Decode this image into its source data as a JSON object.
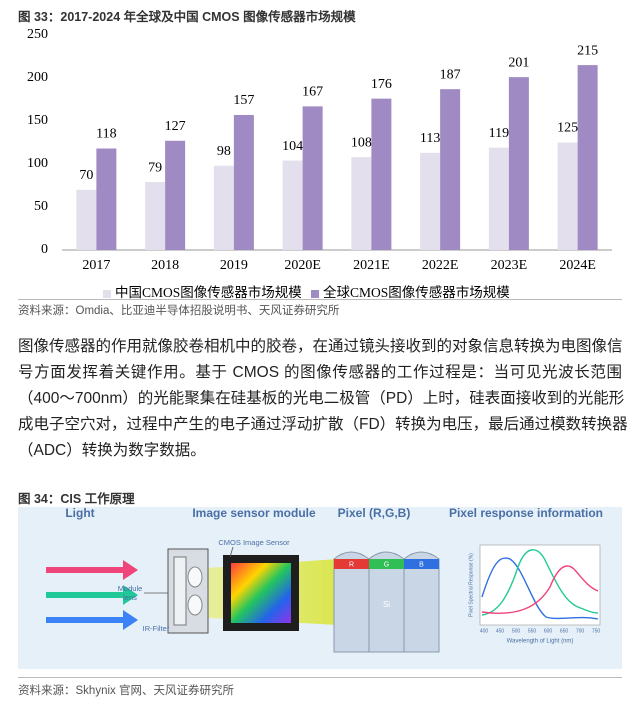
{
  "chart_data": {
    "type": "bar",
    "title": "图 33：2017-2024 年全球及中国 CMOS 图像传感器市场规模",
    "categories": [
      "2017",
      "2018",
      "2019",
      "2020E",
      "2021E",
      "2022E",
      "2023E",
      "2024E"
    ],
    "series": [
      {
        "name": "中国CMOS图像传感器市场规模",
        "color": "#e4dfec",
        "values": [
          70,
          79,
          98,
          104,
          108,
          113,
          119,
          125
        ]
      },
      {
        "name": "全球CMOS图像传感器市场规模",
        "color": "#9f8ac3",
        "values": [
          118,
          127,
          157,
          167,
          176,
          187,
          201,
          215
        ]
      }
    ],
    "ylim": [
      0,
      250
    ],
    "yticks": [
      0,
      50,
      100,
      150,
      200,
      250
    ],
    "legend": "bottom"
  },
  "source_1": "资料来源：Omdia、比亚迪半导体招股说明书、天风证券研究所",
  "paragraph": [
    "图像传感器的作用就像胶卷相机中的胶卷，在通过镜头接收到的对象信息转换为电图像信",
    "号方面发挥着关键作用。基于 CMOS 的图像传感器的工作过程是：当可见光波长范围",
    "（400～700nm）的光能聚集在硅基板的光电二极管（PD）上时，硅表面接收到的光能形",
    "成电子空穴对，过程中产生的电子通过浮动扩散（FD）转换为电压，最后通过模数转换器",
    "（ADC）转换为数字数据。"
  ],
  "figure_34": {
    "title": "图 34：CIS 工作原理",
    "headers": [
      "Light",
      "Image sensor module",
      "Pixel (R,G,B)",
      "Pixel response information"
    ],
    "module_lens": [
      "Module",
      "lens"
    ],
    "cmos_label": "CMOS Image Sensor",
    "ir_filter": "IR-Filter",
    "pixel_filters": [
      "R",
      "G",
      "B"
    ],
    "substrate": "Si",
    "response_plot": {
      "y_label": "Pixel Spectral Response (%)",
      "x_label": "Wavelength of Light (nm)",
      "x_ticks": [
        400,
        450,
        500,
        550,
        600,
        650,
        700,
        750
      ]
    }
  },
  "source_2": "资料来源：Skhynix 官网、天风证券研究所"
}
